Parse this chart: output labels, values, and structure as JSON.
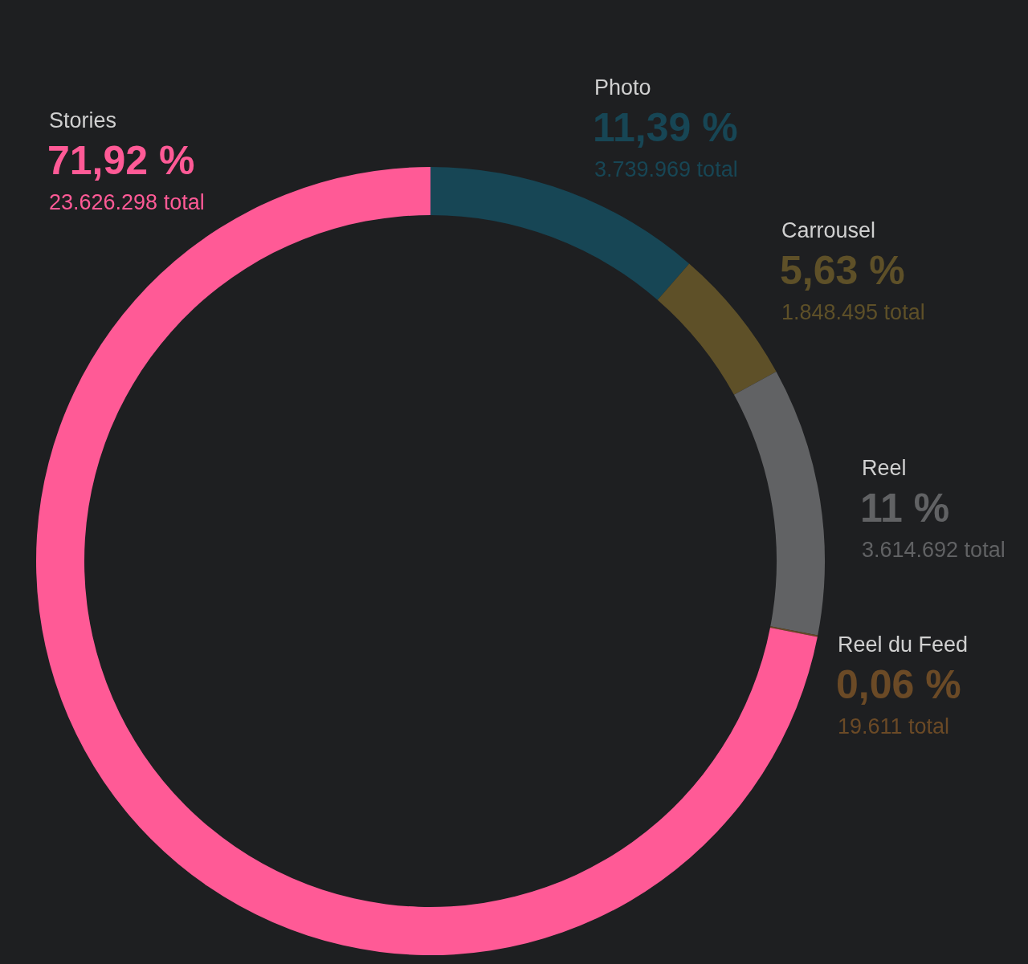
{
  "chart_data": {
    "type": "donut",
    "categories": [
      "Photo",
      "Carrousel",
      "Reel",
      "Reel du Feed",
      "Stories"
    ],
    "values": [
      11.39,
      5.63,
      11,
      0.06,
      71.92
    ],
    "value_labels": [
      "11,39 %",
      "5,63 %",
      "11 %",
      "0,06 %",
      "71,92 %"
    ],
    "colors": [
      "#174655",
      "#5e5028",
      "#616264",
      "#6b4a26",
      "#ff5a96"
    ],
    "annotations": [
      "3.739.969 total",
      "1.848.495 total",
      "3.614.692 total",
      "19.611 total",
      "23.626.298 total"
    ]
  }
}
